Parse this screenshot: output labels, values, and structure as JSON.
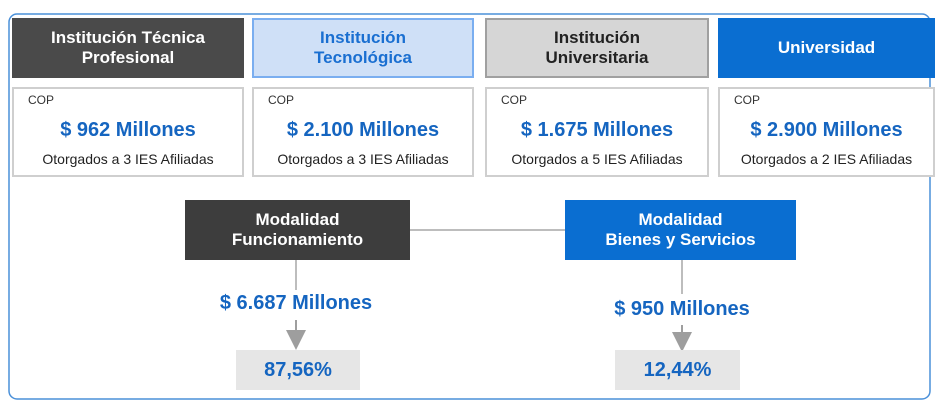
{
  "columns": [
    {
      "title": [
        "Institución Técnica",
        "Profesional"
      ],
      "currency": "COP",
      "amount": "$ 962 Millones",
      "caption": "Otorgados a 3 IES Afiliadas"
    },
    {
      "title": [
        "Institución",
        "Tecnológica"
      ],
      "currency": "COP",
      "amount": "$ 2.100 Millones",
      "caption": "Otorgados a 3 IES Afiliadas"
    },
    {
      "title": [
        "Institución",
        "Universitaria"
      ],
      "currency": "COP",
      "amount": "$ 1.675 Millones",
      "caption": "Otorgados a 5 IES Afiliadas"
    },
    {
      "title": [
        "Universidad"
      ],
      "currency": "COP",
      "amount": "$ 2.900 Millones",
      "caption": "Otorgados a 2 IES Afiliadas"
    }
  ],
  "modalities": [
    {
      "title": [
        "Modalidad",
        "Funcionamiento"
      ],
      "amount": "$ 6.687 Millones",
      "share": "87,56%"
    },
    {
      "title": [
        "Modalidad",
        "Bienes y Servicios"
      ],
      "amount": "$ 950 Millones",
      "share": "12,44%"
    }
  ]
}
